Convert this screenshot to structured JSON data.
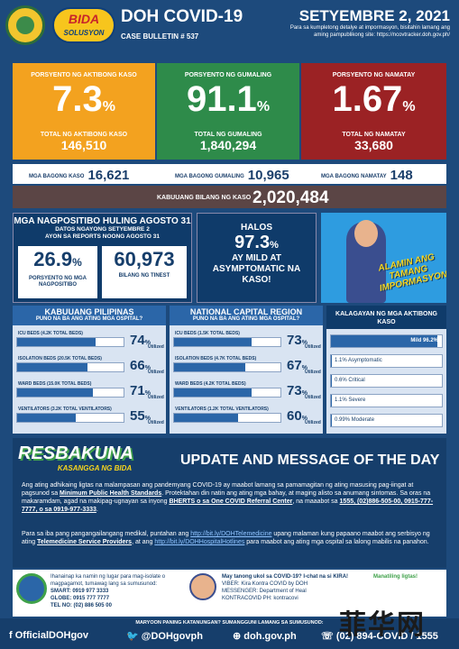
{
  "header": {
    "title": "DOH COVID-19",
    "bulletin": "CASE BULLETIN # 537",
    "date": "SETYEMBRE 2, 2021",
    "note": "Para sa kumpletong detalye at impormasyon, bisitahin lamang ang aming pampublikong site: https://ncovtracker.doh.gov.ph/",
    "bida_logo": "BIDA",
    "bida_sub": "SOLUSYON"
  },
  "stats": {
    "active": {
      "label": "PORSYENTO NG AKTIBONG KASO",
      "pct": "7.3",
      "total_label": "TOTAL NG AKTIBONG KASO",
      "total": "146,510"
    },
    "recovered": {
      "label": "PORSYENTO NG GUMALING",
      "pct": "91.1",
      "total_label": "TOTAL NG GUMALING",
      "total": "1,840,294"
    },
    "deaths": {
      "label": "PORSYENTO NG NAMATAY",
      "pct": "1.67",
      "total_label": "TOTAL NG NAMATAY",
      "total": "33,680"
    },
    "pct_sign": "%"
  },
  "new": {
    "cases_label": "MGA BAGONG KASO",
    "cases": "16,621",
    "recovered_label": "MGA BAGONG GUMALING",
    "recovered": "10,965",
    "deaths_label": "MGA BAGONG NAMATAY",
    "deaths": "148"
  },
  "total": {
    "label": "KABUUANG BILANG NG KASO",
    "value": "2,020,484"
  },
  "positivity": {
    "title": "MGA NAGPOSITIBO HULING AGOSTO 31",
    "sub1": "DATOS NGAYONG SETYEMBRE 2",
    "sub2": "AYON SA REPORTS NOONG AGOSTO 31",
    "rate": "26.9",
    "rate_label": "PORSYENTO NG MGA NAGPOSITIBO",
    "tested": "60,973",
    "tested_label": "BILANG NG TINEST"
  },
  "halos": {
    "line1": "HALOS",
    "pct": "97.3",
    "line2": "AY MILD AT ASYMPTOMATIC NA KASO!"
  },
  "alamin": "ALAMIN ANG TAMANG IMPORMASYON",
  "utilized": "Utilized",
  "ph": {
    "title": "KABUUANG PILIPINAS",
    "sub": "PUNO NA BA ANG ATING MGA OSPITAL?",
    "beds": [
      {
        "label": "ICU BEDS (4.2K TOTAL BEDS)",
        "pct": 74
      },
      {
        "label": "ISOLATION BEDS (20.5K TOTAL BEDS)",
        "pct": 66
      },
      {
        "label": "WARD BEDS (15.0K TOTAL BEDS)",
        "pct": 71
      },
      {
        "label": "VENTILATORS (3.2K TOTAL VENTILATORS)",
        "pct": 55
      }
    ]
  },
  "ncr": {
    "title": "NATIONAL CAPITAL REGION",
    "sub": "PUNO NA BA ANG ATING MGA OSPITAL?",
    "beds": [
      {
        "label": "ICU BEDS (1.5K TOTAL BEDS)",
        "pct": 73
      },
      {
        "label": "ISOLATION BEDS (4.7K TOTAL BEDS)",
        "pct": 67
      },
      {
        "label": "WARD BEDS (4.2K TOTAL BEDS)",
        "pct": 73
      },
      {
        "label": "VENTILATORS (1.2K TOTAL VENTILATORS)",
        "pct": 60
      }
    ]
  },
  "severity": {
    "title": "KALAGAYAN NG MGA AKTIBONG KASO",
    "items": [
      {
        "label": "Mild 96.2%",
        "pct": 96.2
      },
      {
        "label": "1.1% Asymptomatic",
        "pct": 1.1
      },
      {
        "label": "0.6% Critical",
        "pct": 0.6
      },
      {
        "label": "1.1% Severe",
        "pct": 1.1
      },
      {
        "label": "0.99% Moderate",
        "pct": 0.99
      }
    ]
  },
  "update": {
    "brand": "RESBAKUNA",
    "brand_sub": "KASANGGA NG BIDA",
    "title": "UPDATE AND MESSAGE OF THE DAY",
    "p1a": "Ang ating adhikaing ligtas na malampasan ang pandemyang COVID-19 ay maabot lamang sa pamamagitan ng ating masusing pag-iingat at pagsunod sa ",
    "p1b": "Minimum Public Health Standards",
    "p1c": ". Protektahan din natin ang ating mga bahay, at maging alisto sa anumang sintomas. Sa oras na makaramdam, agad na makipag-ugnayan sa inyong ",
    "p1d": "BHERTS o sa One COVID Referral Center",
    "p1e": ", na maaabot sa ",
    "p1f": "1555, (02)886-505-00, 0915-777-7777, o sa 0919-977-3333",
    "p1g": ".",
    "p2a": "Para sa iba pang pangangailangang medikal, puntahan ang ",
    "p2b": "http://bit.ly/DOHTelemedicine",
    "p2c": " upang malaman kung papaano maabot ang serbisyo ng ating ",
    "p2d": "Telemedicine Service Providers",
    "p2e": ", at ang ",
    "p2f": "http://bit.ly/DOHHospitalHotlines",
    "p2g": " para maabot ang ating mga ospital sa lalong mabilis na panahon."
  },
  "contact": {
    "left_title": "Ihanainap ka namin ng lugar para mag-isolate o magpagamot, tumawag lang sa sumusunod:",
    "smart": "SMART: 0919 977 3333",
    "globe": "GLOBE: 0915 777 7777",
    "tel": "TEL NO: (02) 886 505 00",
    "right_title": "May tanong ukol sa COVID-19? I-chat na si KIRA!",
    "viber": "VIBER: Kira Kontra COVID by DOH",
    "messenger": "MESSENGER: Department of Heal",
    "kontra": "KONTRACOVID PH: kontracovi",
    "ligtas": "Manatiling ligtas!"
  },
  "footer": {
    "note": "MARYOON PANING KATANUNGAN? SUMANGGUNI LAMANG SA SUMUSUNOD:",
    "fb": "OfficialDOHgov",
    "tw": "@DOHgovph",
    "web": "doh.gov.ph",
    "phone": "(02) 894-COVID / 1555"
  },
  "watermark": "菲华网"
}
